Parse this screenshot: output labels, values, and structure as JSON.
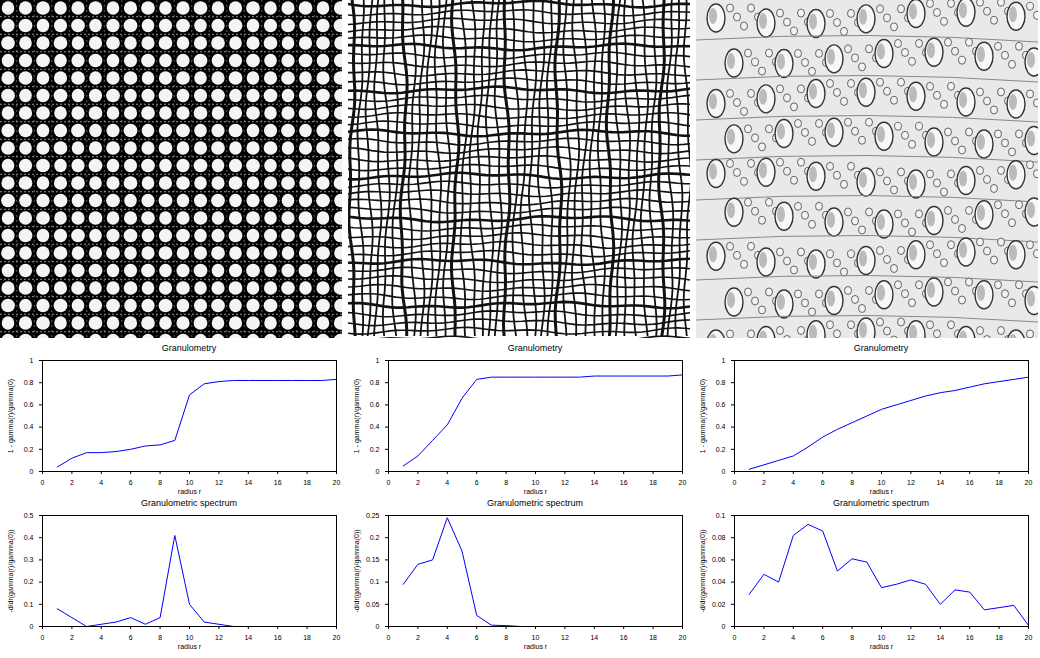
{
  "chart_data": [
    {
      "type": "line",
      "title": "Granulometry",
      "xlabel": "radius r",
      "ylabel": "1 - gamma(r)/gamma(0)",
      "x": [
        1,
        2,
        3,
        4,
        5,
        6,
        7,
        8,
        9,
        10,
        11,
        12,
        13,
        14,
        15,
        16,
        17,
        18,
        19,
        20
      ],
      "values": [
        0.04,
        0.12,
        0.17,
        0.17,
        0.18,
        0.2,
        0.23,
        0.24,
        0.28,
        0.69,
        0.79,
        0.81,
        0.82,
        0.82,
        0.82,
        0.82,
        0.82,
        0.82,
        0.82,
        0.83
      ],
      "color": "#0000ff",
      "xlim": [
        0,
        20
      ],
      "ylim": [
        0,
        1
      ],
      "xticks": [
        0,
        2,
        4,
        6,
        8,
        10,
        12,
        14,
        16,
        18,
        20
      ],
      "yticks": [
        0,
        0.2,
        0.4,
        0.6,
        0.8,
        1
      ],
      "grid": false
    },
    {
      "type": "line",
      "title": "Granulometry",
      "xlabel": "radius r",
      "ylabel": "1 - gamma(r)/gamma(0)",
      "x": [
        1,
        2,
        3,
        4,
        5,
        6,
        7,
        8,
        9,
        10,
        11,
        12,
        13,
        14,
        15,
        16,
        17,
        18,
        19,
        20
      ],
      "values": [
        0.05,
        0.14,
        0.28,
        0.42,
        0.66,
        0.83,
        0.85,
        0.85,
        0.85,
        0.85,
        0.85,
        0.85,
        0.85,
        0.86,
        0.86,
        0.86,
        0.86,
        0.86,
        0.86,
        0.87
      ],
      "color": "#0000ff",
      "xlim": [
        0,
        20
      ],
      "ylim": [
        0,
        1
      ],
      "xticks": [
        0,
        2,
        4,
        6,
        8,
        10,
        12,
        14,
        16,
        18,
        20
      ],
      "yticks": [
        0,
        0.2,
        0.4,
        0.6,
        0.8,
        1
      ],
      "grid": false
    },
    {
      "type": "line",
      "title": "Granulometry",
      "xlabel": "radius r",
      "ylabel": "1 - gamma(r)/gamma(0)",
      "x": [
        1,
        2,
        3,
        4,
        5,
        6,
        7,
        8,
        9,
        10,
        11,
        12,
        13,
        14,
        15,
        16,
        17,
        18,
        19,
        20
      ],
      "values": [
        0.02,
        0.06,
        0.1,
        0.14,
        0.22,
        0.31,
        0.38,
        0.44,
        0.5,
        0.56,
        0.6,
        0.64,
        0.68,
        0.71,
        0.73,
        0.76,
        0.79,
        0.81,
        0.83,
        0.85
      ],
      "color": "#0000ff",
      "xlim": [
        0,
        20
      ],
      "ylim": [
        0,
        1
      ],
      "xticks": [
        0,
        2,
        4,
        6,
        8,
        10,
        12,
        14,
        16,
        18,
        20
      ],
      "yticks": [
        0,
        0.2,
        0.4,
        0.6,
        0.8,
        1
      ],
      "grid": false
    },
    {
      "type": "line",
      "title": "Granulometric spectrum",
      "xlabel": "radius r",
      "ylabel": "-d/dr(gamma(r)/gamma(0))",
      "x": [
        1,
        2,
        3,
        4,
        5,
        6,
        7,
        8,
        9,
        10,
        11,
        12,
        13,
        14,
        15,
        16,
        17,
        18,
        19,
        20
      ],
      "values": [
        0.08,
        0.04,
        0.0,
        0.01,
        0.02,
        0.04,
        0.01,
        0.04,
        0.41,
        0.1,
        0.02,
        0.01,
        0.0,
        0.0,
        0.0,
        0.0,
        0.0,
        0.0,
        0.0,
        0.0
      ],
      "color": "#0000ff",
      "xlim": [
        0,
        20
      ],
      "ylim": [
        0,
        0.5
      ],
      "xticks": [
        0,
        2,
        4,
        6,
        8,
        10,
        12,
        14,
        16,
        18,
        20
      ],
      "yticks": [
        0,
        0.1,
        0.2,
        0.3,
        0.4,
        0.5
      ],
      "grid": false
    },
    {
      "type": "line",
      "title": "Granulometric spectrum",
      "xlabel": "radius r",
      "ylabel": "-d/dr(gamma(r)/gamma(0))",
      "x": [
        1,
        2,
        3,
        4,
        5,
        6,
        7,
        8,
        9,
        10,
        11,
        12,
        13,
        14,
        15,
        16,
        17,
        18,
        19,
        20
      ],
      "values": [
        0.095,
        0.14,
        0.15,
        0.245,
        0.17,
        0.025,
        0.003,
        0.002,
        0.0,
        0.0,
        0.0,
        0.0,
        0.0,
        0.0,
        0.0,
        0.0,
        0.0,
        0.0,
        0.0,
        0.0
      ],
      "color": "#0000ff",
      "xlim": [
        0,
        20
      ],
      "ylim": [
        0,
        0.25
      ],
      "xticks": [
        0,
        2,
        4,
        6,
        8,
        10,
        12,
        14,
        16,
        18,
        20
      ],
      "yticks": [
        0,
        0.05,
        0.1,
        0.15,
        0.2,
        0.25
      ],
      "grid": false
    },
    {
      "type": "line",
      "title": "Granulometric spectrum",
      "xlabel": "radius r",
      "ylabel": "-d/dr(gamma(r)/gamma(0))",
      "x": [
        1,
        2,
        3,
        4,
        5,
        6,
        7,
        8,
        9,
        10,
        11,
        12,
        13,
        14,
        15,
        16,
        17,
        18,
        19,
        20
      ],
      "values": [
        0.029,
        0.047,
        0.04,
        0.082,
        0.092,
        0.086,
        0.05,
        0.061,
        0.058,
        0.035,
        0.038,
        0.042,
        0.038,
        0.02,
        0.033,
        0.031,
        0.015,
        0.017,
        0.019,
        0.001
      ],
      "color": "#0000ff",
      "xlim": [
        0,
        20
      ],
      "ylim": [
        0,
        0.1
      ],
      "xticks": [
        0,
        2,
        4,
        6,
        8,
        10,
        12,
        14,
        16,
        18,
        20
      ],
      "yticks": [
        0,
        0.02,
        0.04,
        0.06,
        0.08,
        0.1
      ],
      "grid": false
    }
  ]
}
